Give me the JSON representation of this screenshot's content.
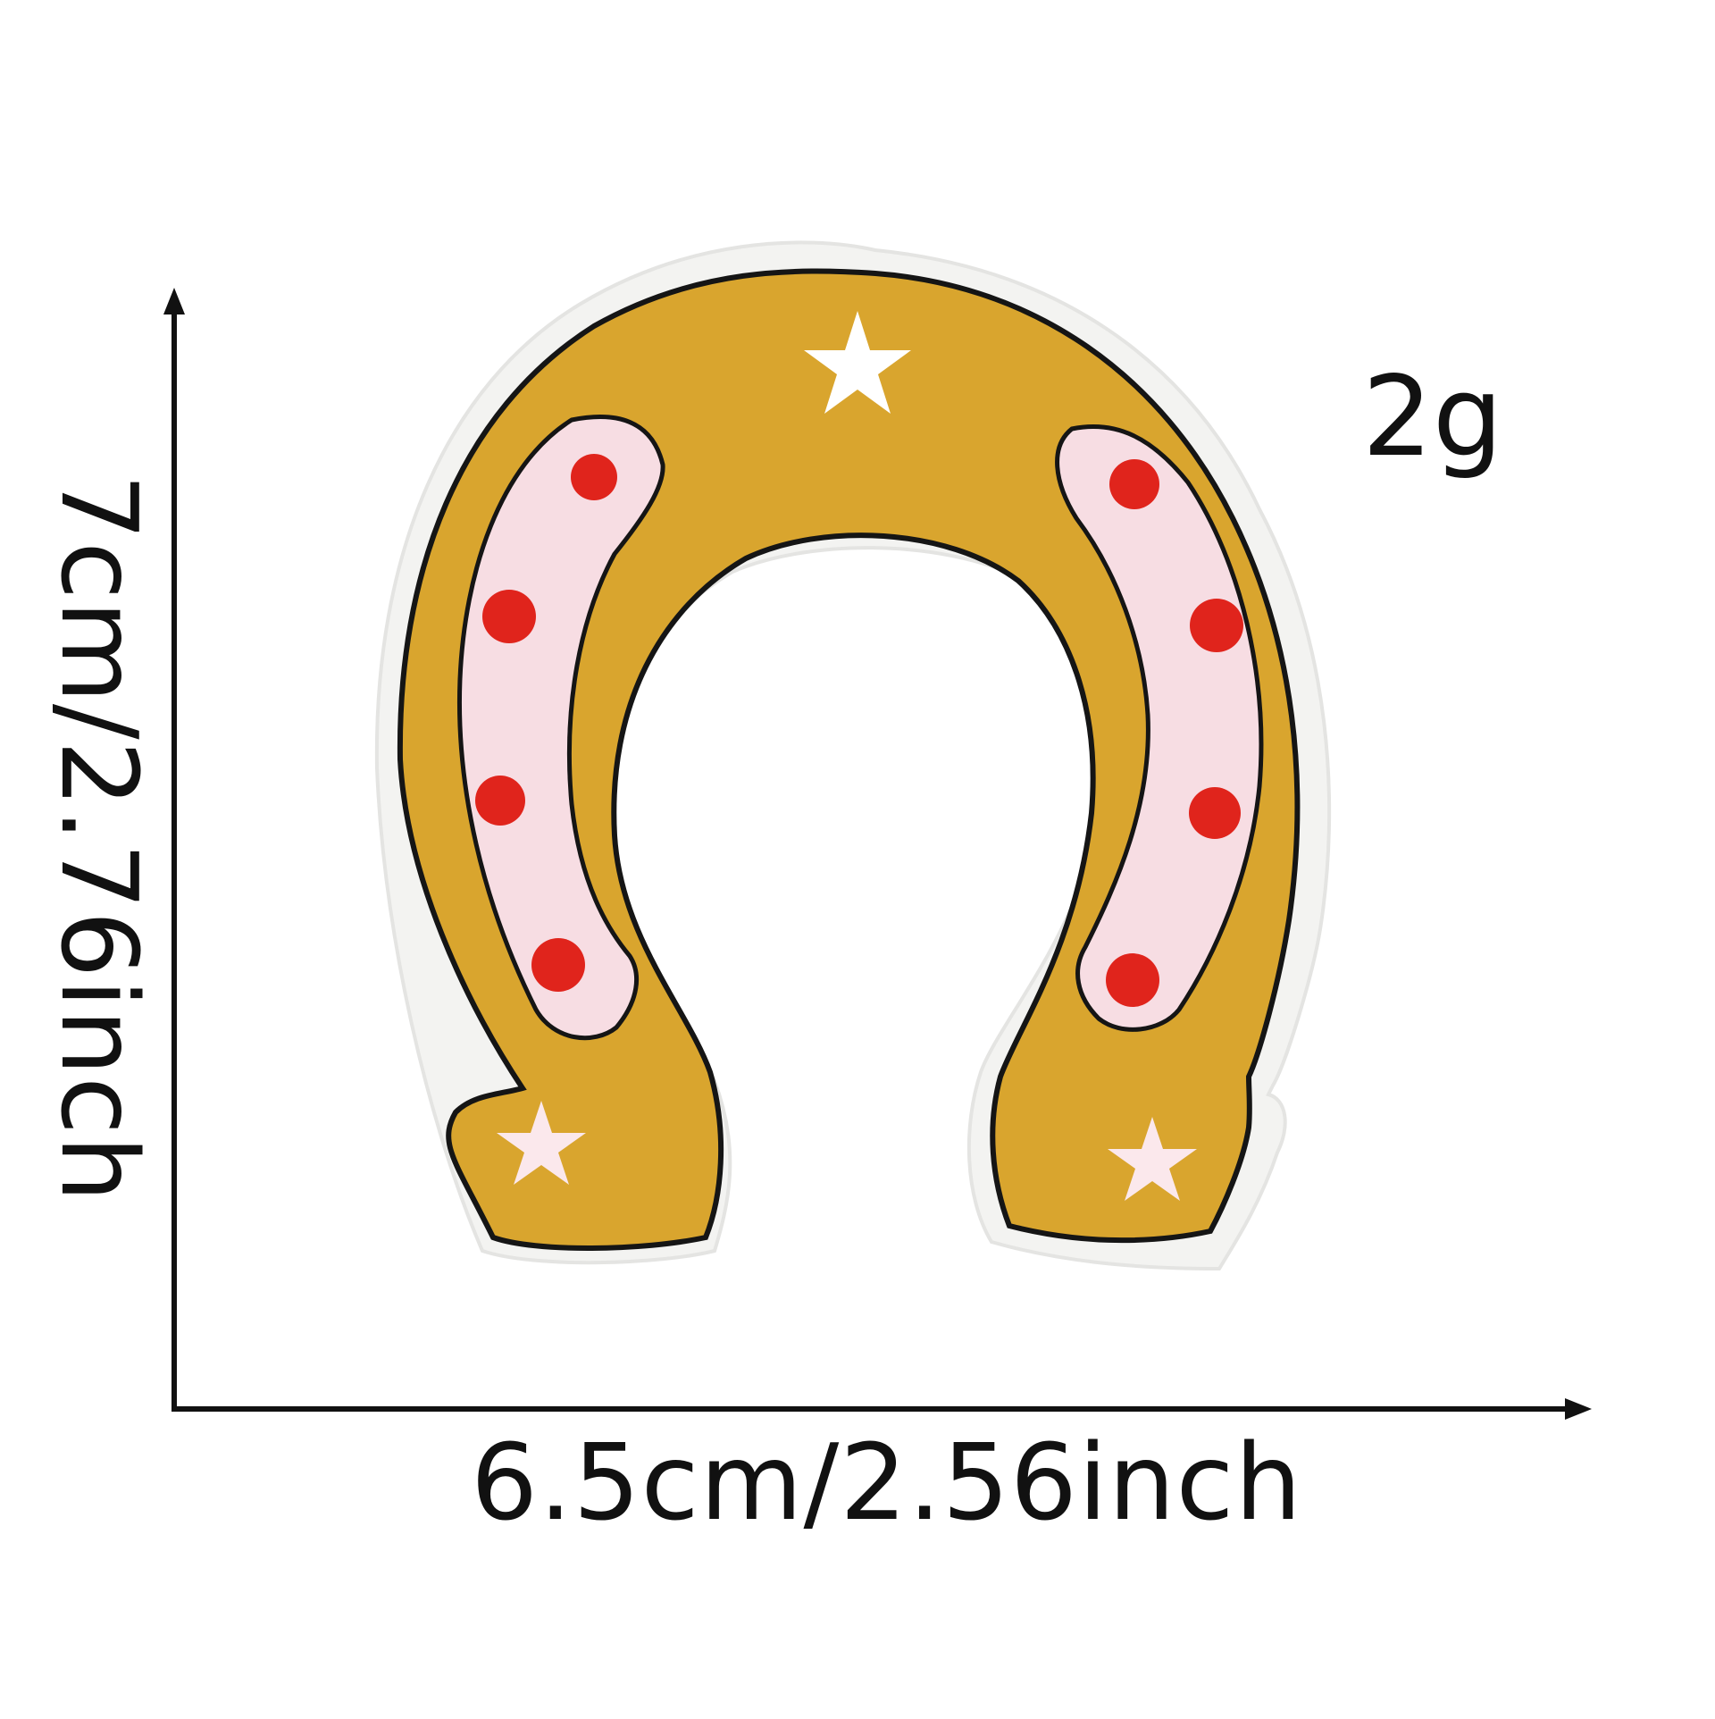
{
  "labels": {
    "weight": "2g",
    "width": "6.5cm/2.56inch",
    "height": "7cm/2.76inch"
  },
  "product": {
    "name_icon": "horseshoe-patch-icon",
    "colors": {
      "gold": "#D9A52E",
      "pink": "#F7DDE3",
      "red": "#E0241C",
      "outline": "#1A1A1A",
      "felt": "#F4F4F2",
      "star": "#FBE8EC"
    }
  }
}
